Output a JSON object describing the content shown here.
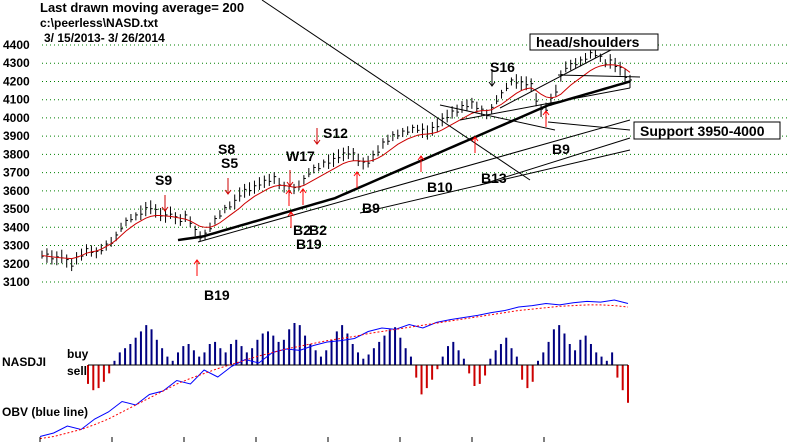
{
  "header": {
    "title": "Last drawn moving average= 200",
    "file": "c:\\peerless\\NASD.txt",
    "date_range": " 3/ 15/2013-  3/ 26/2014"
  },
  "indicator_labels": {
    "nasdji": "NASDJI",
    "buy": "buy",
    "sell": "sell",
    "obv": "OBV (blue line)"
  },
  "colors": {
    "price_bars": "#000000",
    "ma_red": "#cc0000",
    "ma_long": "#000000",
    "buy_arrow": "#ff0000",
    "sell_arrow": "#cc0000",
    "obv_line": "#0000ff",
    "obv_ma": "#ff0000",
    "histogram_positive": "#000080",
    "histogram_negative": "#cc0000",
    "grid": "#008000"
  },
  "chart_data": {
    "type": "line",
    "ylim": [
      3050,
      4450
    ],
    "yticks": [
      3100,
      3200,
      3300,
      3400,
      3500,
      3600,
      3700,
      3800,
      3900,
      4000,
      4100,
      4200,
      4300,
      4400
    ],
    "grid": true,
    "series": [
      {
        "style": "ohlc_bars",
        "values": [
          3250,
          3245,
          3235,
          3230,
          3240,
          3215,
          3195,
          3230,
          3250,
          3275,
          3270,
          3260,
          3280,
          3300,
          3320,
          3350,
          3400,
          3430,
          3450,
          3460,
          3480,
          3500,
          3510,
          3490,
          3470,
          3460,
          3480,
          3450,
          3440,
          3460,
          3430,
          3380,
          3350,
          3360,
          3400,
          3440,
          3470,
          3500,
          3520,
          3540,
          3580,
          3600,
          3610,
          3620,
          3640,
          3650,
          3660,
          3670,
          3640,
          3620,
          3600,
          3610,
          3630,
          3660,
          3700,
          3720,
          3730,
          3750,
          3760,
          3770,
          3790,
          3800,
          3810,
          3800,
          3770,
          3750,
          3760,
          3790,
          3820,
          3860,
          3880,
          3900,
          3910,
          3920,
          3930,
          3940,
          3940,
          3930,
          3920,
          3940,
          3960,
          3990,
          4010,
          4030,
          4040,
          4060,
          4070,
          4080,
          4060,
          4040,
          4020,
          4050,
          4100,
          4130,
          4170,
          4200,
          4200,
          4190,
          4190,
          4180,
          4100,
          4040,
          4050,
          4100,
          4150,
          4230,
          4280,
          4290,
          4300,
          4310,
          4330,
          4350,
          4350,
          4330,
          4300,
          4310,
          4290,
          4270,
          4230,
          4200
        ]
      },
      {
        "style": "moving_average_short",
        "values": [
          3245,
          3242,
          3238,
          3235,
          3232,
          3230,
          3228,
          3235,
          3245,
          3258,
          3265,
          3270,
          3280,
          3295,
          3310,
          3330,
          3355,
          3380,
          3400,
          3420,
          3435,
          3450,
          3460,
          3465,
          3465,
          3462,
          3460,
          3455,
          3450,
          3445,
          3435,
          3420,
          3405,
          3400,
          3400,
          3410,
          3425,
          3445,
          3465,
          3485,
          3505,
          3530,
          3550,
          3570,
          3585,
          3600,
          3615,
          3625,
          3630,
          3630,
          3625,
          3620,
          3622,
          3630,
          3645,
          3660,
          3675,
          3690,
          3705,
          3720,
          3735,
          3750,
          3760,
          3765,
          3765,
          3762,
          3762,
          3768,
          3780,
          3795,
          3815,
          3835,
          3855,
          3870,
          3885,
          3895,
          3905,
          3910,
          3912,
          3915,
          3922,
          3935,
          3950,
          3965,
          3980,
          3995,
          4010,
          4025,
          4035,
          4040,
          4040,
          4045,
          4060,
          4075,
          4095,
          4115,
          4135,
          4150,
          4160,
          4165,
          4150,
          4130,
          4115,
          4110,
          4115,
          4130,
          4155,
          4180,
          4200,
          4220,
          4240,
          4260,
          4275,
          4285,
          4290,
          4292,
          4290,
          4285,
          4270,
          4250
        ]
      },
      {
        "style": "moving_average_200",
        "values": [
          3330,
          3335,
          3340,
          3345,
          3350,
          3360,
          3370,
          3380,
          3390,
          3400,
          3410,
          3420,
          3430,
          3440,
          3450,
          3460,
          3470,
          3480,
          3490,
          3500,
          3510,
          3520,
          3530,
          3540,
          3550,
          3560,
          3575,
          3590,
          3605,
          3620,
          3635,
          3650,
          3665,
          3680,
          3695,
          3710,
          3725,
          3740,
          3755,
          3770,
          3785,
          3800,
          3815,
          3830,
          3845,
          3860,
          3875,
          3890,
          3905,
          3920,
          3935,
          3950,
          3965,
          3980,
          3995,
          4010,
          4025,
          4040,
          4055,
          4070,
          4080,
          4090,
          4100,
          4110,
          4120,
          4130,
          4140,
          4150,
          4160,
          4170,
          4180,
          4190,
          4200
        ]
      }
    ],
    "annotations": [
      {
        "text": "head/shoulders",
        "boxed": true
      },
      {
        "text": "Support 3950-4000",
        "boxed": true
      },
      {
        "text": "S9",
        "kind": "sell"
      },
      {
        "text": "S8",
        "kind": "sell"
      },
      {
        "text": "S5",
        "kind": "sell"
      },
      {
        "text": "W17",
        "kind": "sell"
      },
      {
        "text": "S12",
        "kind": "sell"
      },
      {
        "text": "S16",
        "kind": "sell"
      },
      {
        "text": "B19",
        "kind": "buy"
      },
      {
        "text": "B19",
        "kind": "buy"
      },
      {
        "text": "B2",
        "kind": "buy"
      },
      {
        "text": "B2",
        "kind": "buy"
      },
      {
        "text": "B9",
        "kind": "buy"
      },
      {
        "text": "B10",
        "kind": "buy"
      },
      {
        "text": "B13",
        "kind": "buy"
      },
      {
        "text": "B9",
        "kind": "buy"
      }
    ],
    "indicator": {
      "histogram": [
        -0.45,
        -0.6,
        -0.55,
        -0.4,
        -0.2,
        0.1,
        0.3,
        0.4,
        0.5,
        0.65,
        0.8,
        0.95,
        0.85,
        0.6,
        0.4,
        0.2,
        0.1,
        0.3,
        0.45,
        0.5,
        0.35,
        0.2,
        0.3,
        0.5,
        0.55,
        0.4,
        0.3,
        0.5,
        0.6,
        0.45,
        0.3,
        0.4,
        0.6,
        0.75,
        0.8,
        0.7,
        0.55,
        0.6,
        0.85,
        1.0,
        0.95,
        0.7,
        0.5,
        0.35,
        0.2,
        0.35,
        0.6,
        0.8,
        0.95,
        0.75,
        0.5,
        0.3,
        0.15,
        0.25,
        0.4,
        0.55,
        0.7,
        0.85,
        0.9,
        0.65,
        0.4,
        0.2,
        -0.3,
        -0.7,
        -0.55,
        -0.35,
        -0.1,
        0.2,
        0.45,
        0.55,
        0.35,
        0.15,
        -0.2,
        -0.5,
        -0.45,
        -0.25,
        0.15,
        0.35,
        0.5,
        0.65,
        0.4,
        0.2,
        -0.35,
        -0.55,
        -0.4,
        0.1,
        0.3,
        0.55,
        0.85,
        0.95,
        0.75,
        0.5,
        0.35,
        0.6,
        0.7,
        0.5,
        0.3,
        0.2,
        0.1,
        0.3,
        -0.3,
        -0.6,
        -0.9
      ]
    },
    "obv": {
      "line": [
        -0.95,
        -0.9,
        -0.8,
        -0.85,
        -0.7,
        -0.6,
        -0.45,
        -0.5,
        -0.35,
        -0.3,
        -0.15,
        -0.2,
        0.0,
        -0.1,
        0.05,
        0.15,
        0.1,
        0.25,
        0.3,
        0.28,
        0.35,
        0.4,
        0.42,
        0.45,
        0.55,
        0.6,
        0.58,
        0.65,
        0.6,
        0.68,
        0.72,
        0.75,
        0.78,
        0.82,
        0.85,
        0.9,
        0.92,
        0.95,
        0.93,
        0.96,
        0.98,
        0.97,
        1.0,
        0.95
      ],
      "ma": [
        -0.98,
        -0.95,
        -0.9,
        -0.85,
        -0.78,
        -0.7,
        -0.6,
        -0.5,
        -0.4,
        -0.3,
        -0.2,
        -0.12,
        -0.05,
        0.02,
        0.08,
        0.14,
        0.2,
        0.25,
        0.3,
        0.34,
        0.38,
        0.42,
        0.45,
        0.48,
        0.52,
        0.55,
        0.58,
        0.61,
        0.64,
        0.67,
        0.7,
        0.73,
        0.76,
        0.79,
        0.82,
        0.85,
        0.87,
        0.89,
        0.91,
        0.92,
        0.93,
        0.93,
        0.92,
        0.9
      ]
    }
  }
}
